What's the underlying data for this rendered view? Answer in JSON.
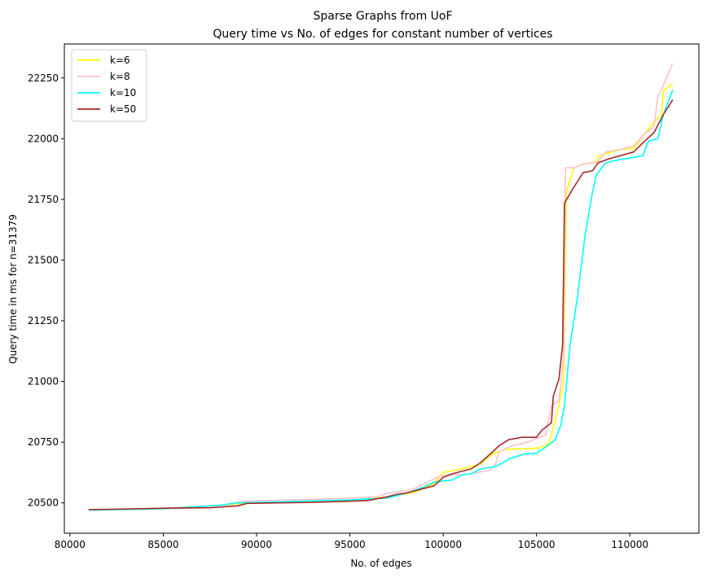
{
  "chart_data": {
    "type": "line",
    "title": "Sparse Graphs from UoF",
    "subtitle": "Query time vs No. of edges for constant number of vertices",
    "xlabel": "No. of edges",
    "ylabel": "Query time in ms for n=31379",
    "xlim": [
      79700,
      113700
    ],
    "ylim": [
      20375,
      22390
    ],
    "xticks": [
      80000,
      85000,
      90000,
      95000,
      100000,
      105000,
      110000
    ],
    "yticks": [
      20500,
      20750,
      21000,
      21250,
      21500,
      21750,
      22000,
      22250
    ],
    "grid": false,
    "legend_position": "top-left",
    "series": [
      {
        "name": "k=6",
        "color": "#ffff00",
        "points": [
          [
            81000,
            20472
          ],
          [
            85000,
            20478
          ],
          [
            88000,
            20490
          ],
          [
            89500,
            20500
          ],
          [
            92000,
            20502
          ],
          [
            95000,
            20508
          ],
          [
            97000,
            20525
          ],
          [
            98500,
            20545
          ],
          [
            99500,
            20580
          ],
          [
            100000,
            20625
          ],
          [
            101000,
            20640
          ],
          [
            102000,
            20660
          ],
          [
            102600,
            20700
          ],
          [
            103300,
            20720
          ],
          [
            105000,
            20725
          ],
          [
            105600,
            20740
          ],
          [
            105800,
            20780
          ],
          [
            106200,
            20900
          ],
          [
            106450,
            21000
          ],
          [
            106600,
            21780
          ],
          [
            107000,
            21880
          ],
          [
            107500,
            21895
          ],
          [
            108200,
            21905
          ],
          [
            108300,
            21925
          ],
          [
            108800,
            21940
          ],
          [
            109500,
            21955
          ],
          [
            110200,
            21960
          ],
          [
            110500,
            21990
          ],
          [
            111200,
            22060
          ],
          [
            111700,
            22100
          ],
          [
            111800,
            22200
          ],
          [
            112300,
            22225
          ]
        ]
      },
      {
        "name": "k=8",
        "color": "#ffc0cb",
        "points": [
          [
            81000,
            20470
          ],
          [
            85000,
            20478
          ],
          [
            88000,
            20490
          ],
          [
            89500,
            20508
          ],
          [
            92000,
            20512
          ],
          [
            95000,
            20520
          ],
          [
            96500,
            20525
          ],
          [
            97000,
            20540
          ],
          [
            98000,
            20550
          ],
          [
            98500,
            20560
          ],
          [
            99000,
            20580
          ],
          [
            99800,
            20610
          ],
          [
            100500,
            20615
          ],
          [
            101500,
            20620
          ],
          [
            102500,
            20635
          ],
          [
            102800,
            20660
          ],
          [
            103000,
            20710
          ],
          [
            103500,
            20730
          ],
          [
            104500,
            20750
          ],
          [
            105500,
            20780
          ],
          [
            105800,
            20900
          ],
          [
            106200,
            20920
          ],
          [
            106450,
            21100
          ],
          [
            106550,
            21880
          ],
          [
            107000,
            21880
          ],
          [
            107500,
            21895
          ],
          [
            108000,
            21900
          ],
          [
            108300,
            21905
          ],
          [
            108700,
            21945
          ],
          [
            109500,
            21955
          ],
          [
            110200,
            21970
          ],
          [
            110800,
            22020
          ],
          [
            111300,
            22050
          ],
          [
            111500,
            22170
          ],
          [
            111800,
            22220
          ],
          [
            112300,
            22310
          ]
        ]
      },
      {
        "name": "k=10",
        "color": "#00ffff",
        "points": [
          [
            81000,
            20470
          ],
          [
            85000,
            20476
          ],
          [
            88000,
            20490
          ],
          [
            89000,
            20500
          ],
          [
            93000,
            20508
          ],
          [
            95000,
            20512
          ],
          [
            97000,
            20520
          ],
          [
            98000,
            20540
          ],
          [
            98800,
            20560
          ],
          [
            99500,
            20585
          ],
          [
            100500,
            20595
          ],
          [
            101000,
            20615
          ],
          [
            101500,
            20620
          ],
          [
            102000,
            20640
          ],
          [
            102800,
            20650
          ],
          [
            103200,
            20665
          ],
          [
            103500,
            20680
          ],
          [
            104300,
            20700
          ],
          [
            105000,
            20705
          ],
          [
            105500,
            20730
          ],
          [
            106000,
            20760
          ],
          [
            106300,
            20820
          ],
          [
            106500,
            20900
          ],
          [
            106800,
            21150
          ],
          [
            107200,
            21350
          ],
          [
            107600,
            21600
          ],
          [
            108000,
            21780
          ],
          [
            108200,
            21850
          ],
          [
            108700,
            21900
          ],
          [
            109500,
            21915
          ],
          [
            110000,
            21920
          ],
          [
            110700,
            21930
          ],
          [
            111000,
            21990
          ],
          [
            111500,
            22000
          ],
          [
            111800,
            22100
          ],
          [
            112300,
            22200
          ]
        ]
      },
      {
        "name": "k=50",
        "color": "#a52a2a",
        "points": [
          [
            81000,
            20472
          ],
          [
            85000,
            20478
          ],
          [
            87500,
            20480
          ],
          [
            89000,
            20488
          ],
          [
            89500,
            20498
          ],
          [
            93000,
            20502
          ],
          [
            95500,
            20508
          ],
          [
            96000,
            20510
          ],
          [
            97000,
            20525
          ],
          [
            97500,
            20535
          ],
          [
            98000,
            20540
          ],
          [
            98500,
            20550
          ],
          [
            99500,
            20570
          ],
          [
            100000,
            20605
          ],
          [
            100500,
            20620
          ],
          [
            101500,
            20640
          ],
          [
            102000,
            20665
          ],
          [
            102500,
            20700
          ],
          [
            103000,
            20735
          ],
          [
            103500,
            20760
          ],
          [
            104200,
            20770
          ],
          [
            105000,
            20770
          ],
          [
            105300,
            20800
          ],
          [
            105800,
            20830
          ],
          [
            105900,
            20940
          ],
          [
            106200,
            21010
          ],
          [
            106400,
            21150
          ],
          [
            106500,
            21735
          ],
          [
            107000,
            21800
          ],
          [
            107500,
            21860
          ],
          [
            108000,
            21868
          ],
          [
            108300,
            21900
          ],
          [
            108800,
            21915
          ],
          [
            109500,
            21930
          ],
          [
            110200,
            21945
          ],
          [
            110800,
            21990
          ],
          [
            111300,
            22025
          ],
          [
            111800,
            22100
          ],
          [
            112300,
            22160
          ]
        ]
      }
    ]
  }
}
